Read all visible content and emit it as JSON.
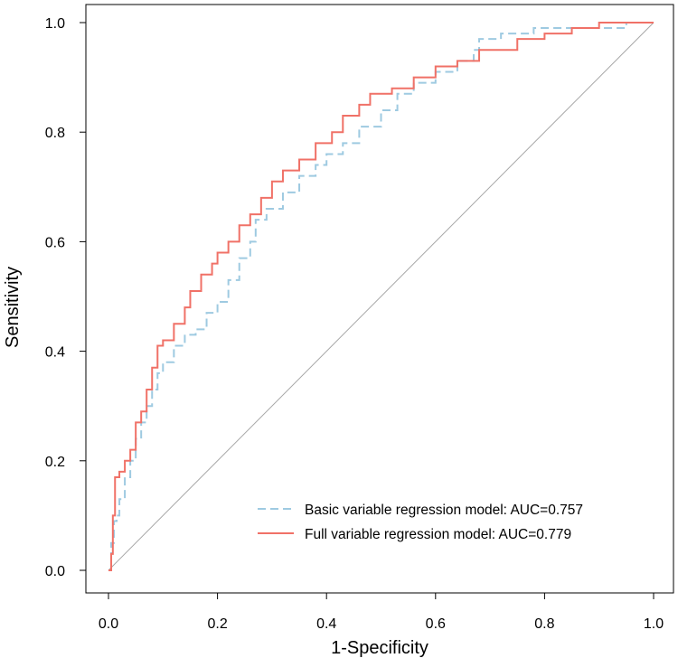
{
  "chart_data": {
    "type": "line",
    "title": "",
    "xlabel": "1-Specificity",
    "ylabel": "Sensitivity",
    "xlim": [
      0,
      1
    ],
    "ylim": [
      0,
      1
    ],
    "x_ticks": [
      "0.0",
      "0.2",
      "0.4",
      "0.6",
      "0.8",
      "1.0"
    ],
    "y_ticks": [
      "0.0",
      "0.2",
      "0.4",
      "0.6",
      "0.8",
      "1.0"
    ],
    "grid": false,
    "legend_placement": "bottom-right",
    "reference_line": {
      "from": [
        0,
        0
      ],
      "to": [
        1,
        1
      ],
      "color": "#a6a6a6"
    },
    "series": [
      {
        "name": "Basic variable regression model: AUC=0.757",
        "color": "#9ecae1",
        "dash": "dashed",
        "points": [
          [
            0,
            0
          ],
          [
            0.005,
            0.05
          ],
          [
            0.01,
            0.09
          ],
          [
            0.015,
            0.1
          ],
          [
            0.02,
            0.13
          ],
          [
            0.03,
            0.17
          ],
          [
            0.04,
            0.2
          ],
          [
            0.05,
            0.24
          ],
          [
            0.06,
            0.27
          ],
          [
            0.07,
            0.3
          ],
          [
            0.08,
            0.33
          ],
          [
            0.09,
            0.36
          ],
          [
            0.1,
            0.38
          ],
          [
            0.12,
            0.41
          ],
          [
            0.14,
            0.43
          ],
          [
            0.16,
            0.44
          ],
          [
            0.18,
            0.47
          ],
          [
            0.2,
            0.49
          ],
          [
            0.22,
            0.53
          ],
          [
            0.24,
            0.57
          ],
          [
            0.26,
            0.6
          ],
          [
            0.27,
            0.64
          ],
          [
            0.29,
            0.66
          ],
          [
            0.32,
            0.69
          ],
          [
            0.35,
            0.72
          ],
          [
            0.38,
            0.74
          ],
          [
            0.4,
            0.76
          ],
          [
            0.43,
            0.78
          ],
          [
            0.46,
            0.81
          ],
          [
            0.5,
            0.84
          ],
          [
            0.53,
            0.87
          ],
          [
            0.56,
            0.89
          ],
          [
            0.6,
            0.91
          ],
          [
            0.64,
            0.93
          ],
          [
            0.67,
            0.95
          ],
          [
            0.68,
            0.97
          ],
          [
            0.72,
            0.98
          ],
          [
            0.78,
            0.99
          ],
          [
            0.85,
            0.99
          ],
          [
            0.9,
            0.99
          ],
          [
            0.95,
            1.0
          ],
          [
            1.0,
            1.0
          ]
        ]
      },
      {
        "name": "Full variable regression model: AUC=0.779",
        "color": "#f07167",
        "dash": "solid",
        "points": [
          [
            0,
            0
          ],
          [
            0.005,
            0.03
          ],
          [
            0.008,
            0.1
          ],
          [
            0.012,
            0.17
          ],
          [
            0.02,
            0.18
          ],
          [
            0.03,
            0.2
          ],
          [
            0.04,
            0.22
          ],
          [
            0.05,
            0.27
          ],
          [
            0.06,
            0.29
          ],
          [
            0.07,
            0.33
          ],
          [
            0.08,
            0.37
          ],
          [
            0.09,
            0.41
          ],
          [
            0.1,
            0.42
          ],
          [
            0.12,
            0.45
          ],
          [
            0.14,
            0.48
          ],
          [
            0.15,
            0.51
          ],
          [
            0.17,
            0.54
          ],
          [
            0.19,
            0.56
          ],
          [
            0.2,
            0.58
          ],
          [
            0.22,
            0.6
          ],
          [
            0.24,
            0.63
          ],
          [
            0.26,
            0.65
          ],
          [
            0.28,
            0.68
          ],
          [
            0.3,
            0.71
          ],
          [
            0.32,
            0.73
          ],
          [
            0.35,
            0.75
          ],
          [
            0.38,
            0.78
          ],
          [
            0.41,
            0.8
          ],
          [
            0.43,
            0.83
          ],
          [
            0.46,
            0.85
          ],
          [
            0.48,
            0.87
          ],
          [
            0.52,
            0.88
          ],
          [
            0.56,
            0.9
          ],
          [
            0.6,
            0.92
          ],
          [
            0.64,
            0.93
          ],
          [
            0.68,
            0.95
          ],
          [
            0.75,
            0.97
          ],
          [
            0.8,
            0.98
          ],
          [
            0.85,
            0.99
          ],
          [
            0.9,
            1.0
          ],
          [
            1.0,
            1.0
          ]
        ]
      }
    ]
  }
}
